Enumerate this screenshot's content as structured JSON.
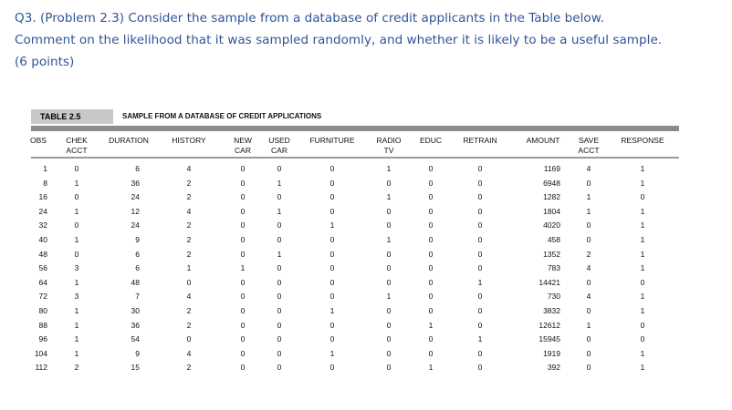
{
  "question": {
    "line1": "Q3. (Problem 2.3) Consider the sample from a database of credit applicants in the Table below.",
    "line2": "Comment on the likelihood that it was sampled randomly, and whether it is likely to be a useful sample.",
    "line3": "(6 points)"
  },
  "table": {
    "label": "TABLE 2.5",
    "caption": "SAMPLE FROM A DATABASE OF CREDIT APPLICATIONS",
    "headers": [
      {
        "l1": "OBS",
        "l2": ""
      },
      {
        "l1": "CHEK",
        "l2": "ACCT"
      },
      {
        "l1": "DURATION",
        "l2": ""
      },
      {
        "l1": "HISTORY",
        "l2": ""
      },
      {
        "l1": "NEW",
        "l2": "CAR"
      },
      {
        "l1": "USED",
        "l2": "CAR"
      },
      {
        "l1": "FURNITURE",
        "l2": ""
      },
      {
        "l1": "RADIO",
        "l2": "TV"
      },
      {
        "l1": "EDUC",
        "l2": ""
      },
      {
        "l1": "RETRAIN",
        "l2": ""
      },
      {
        "l1": "AMOUNT",
        "l2": ""
      },
      {
        "l1": "SAVE",
        "l2": "ACCT"
      },
      {
        "l1": "RESPONSE",
        "l2": ""
      }
    ],
    "rows": [
      [
        "1",
        "0",
        "6",
        "4",
        "0",
        "0",
        "0",
        "1",
        "0",
        "0",
        "1169",
        "4",
        "1"
      ],
      [
        "8",
        "1",
        "36",
        "2",
        "0",
        "1",
        "0",
        "0",
        "0",
        "0",
        "6948",
        "0",
        "1"
      ],
      [
        "16",
        "0",
        "24",
        "2",
        "0",
        "0",
        "0",
        "1",
        "0",
        "0",
        "1282",
        "1",
        "0"
      ],
      [
        "24",
        "1",
        "12",
        "4",
        "0",
        "1",
        "0",
        "0",
        "0",
        "0",
        "1804",
        "1",
        "1"
      ],
      [
        "32",
        "0",
        "24",
        "2",
        "0",
        "0",
        "1",
        "0",
        "0",
        "0",
        "4020",
        "0",
        "1"
      ],
      [
        "40",
        "1",
        "9",
        "2",
        "0",
        "0",
        "0",
        "1",
        "0",
        "0",
        "458",
        "0",
        "1"
      ],
      [
        "48",
        "0",
        "6",
        "2",
        "0",
        "1",
        "0",
        "0",
        "0",
        "0",
        "1352",
        "2",
        "1"
      ],
      [
        "56",
        "3",
        "6",
        "1",
        "1",
        "0",
        "0",
        "0",
        "0",
        "0",
        "783",
        "4",
        "1"
      ],
      [
        "64",
        "1",
        "48",
        "0",
        "0",
        "0",
        "0",
        "0",
        "0",
        "1",
        "14421",
        "0",
        "0"
      ],
      [
        "72",
        "3",
        "7",
        "4",
        "0",
        "0",
        "0",
        "1",
        "0",
        "0",
        "730",
        "4",
        "1"
      ],
      [
        "80",
        "1",
        "30",
        "2",
        "0",
        "0",
        "1",
        "0",
        "0",
        "0",
        "3832",
        "0",
        "1"
      ],
      [
        "88",
        "1",
        "36",
        "2",
        "0",
        "0",
        "0",
        "0",
        "1",
        "0",
        "12612",
        "1",
        "0"
      ],
      [
        "96",
        "1",
        "54",
        "0",
        "0",
        "0",
        "0",
        "0",
        "0",
        "1",
        "15945",
        "0",
        "0"
      ],
      [
        "104",
        "1",
        "9",
        "4",
        "0",
        "0",
        "1",
        "0",
        "0",
        "0",
        "1919",
        "0",
        "1"
      ],
      [
        "112",
        "2",
        "15",
        "2",
        "0",
        "0",
        "0",
        "0",
        "1",
        "0",
        "392",
        "0",
        "1"
      ]
    ]
  }
}
